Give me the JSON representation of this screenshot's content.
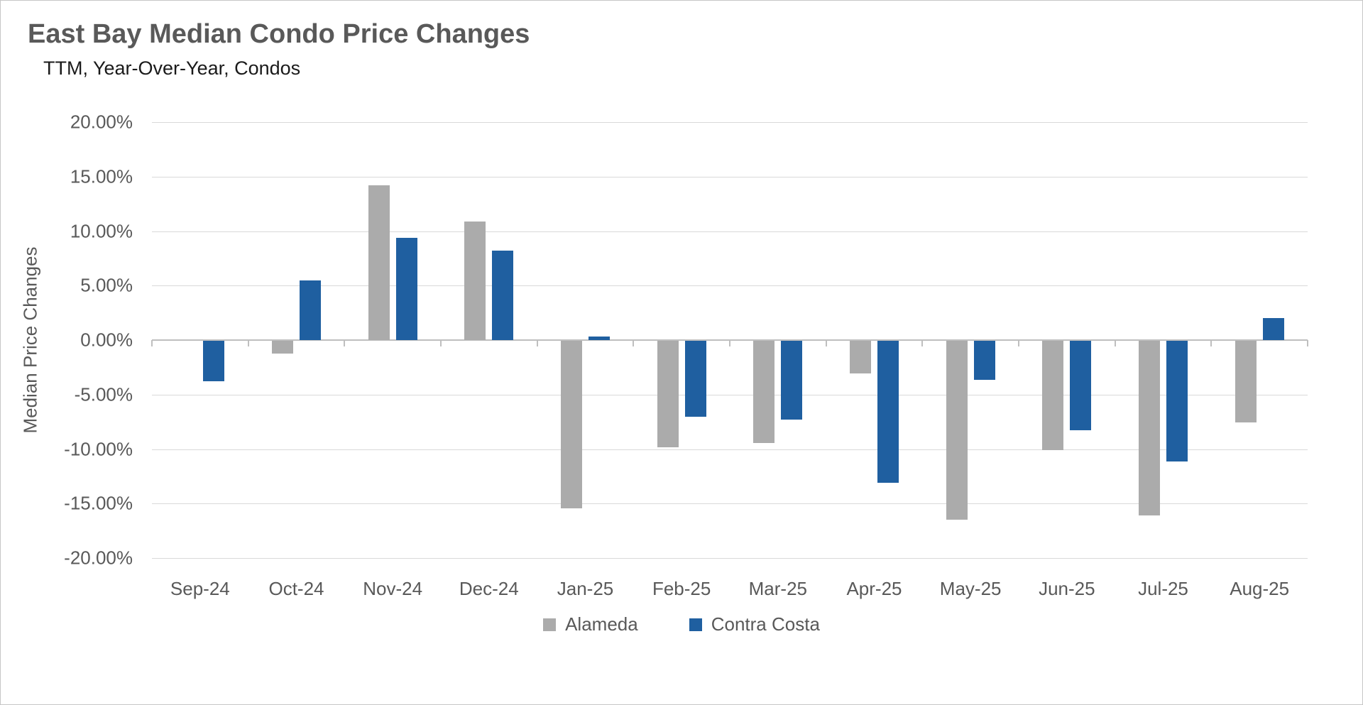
{
  "header": {
    "title": "East Bay Median Condo Price Changes",
    "subtitle": "TTM, Year-Over-Year, Condos"
  },
  "chart_data": {
    "type": "bar",
    "title": "East Bay Median Condo Price Changes",
    "subtitle": "TTM, Year-Over-Year, Condos",
    "xlabel": "",
    "ylabel": "Median Price Changes",
    "categories": [
      "Sep-24",
      "Oct-24",
      "Nov-24",
      "Dec-24",
      "Jan-25",
      "Feb-25",
      "Mar-25",
      "Apr-25",
      "May-25",
      "Jun-25",
      "Jul-25",
      "Aug-25"
    ],
    "series": [
      {
        "name": "Alameda",
        "color": "#ABABAB",
        "values": [
          0.0,
          -1.2,
          14.2,
          10.9,
          -15.4,
          -9.8,
          -9.4,
          -3.0,
          -16.4,
          -10.0,
          -16.0,
          -7.5
        ]
      },
      {
        "name": "Contra Costa",
        "color": "#1F5FA0",
        "values": [
          -3.7,
          5.5,
          9.4,
          8.2,
          0.3,
          -7.0,
          -7.2,
          -13.0,
          -3.6,
          -8.2,
          -11.1,
          2.0
        ]
      }
    ],
    "ylim": [
      -20,
      20
    ],
    "ytick_step": 5,
    "ytick_suffix": "%",
    "ytick_decimals": 2,
    "grid": true,
    "legend_position": "bottom",
    "colors": {
      "gridline": "#d9d9d9",
      "axis_line": "#bfbfbf",
      "title_text": "#595959",
      "subtitle_text": "#1a1a1a",
      "tick_text": "#595959"
    }
  }
}
